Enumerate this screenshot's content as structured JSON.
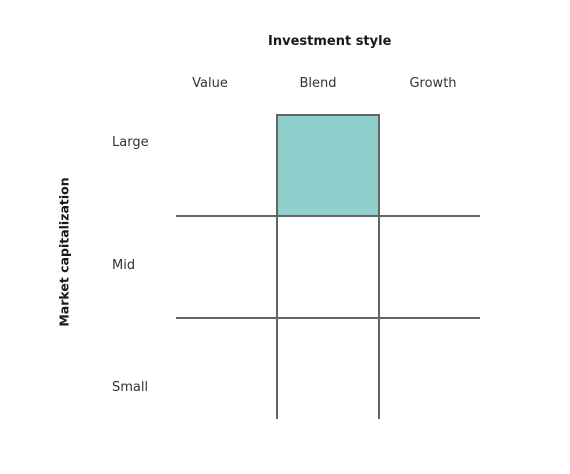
{
  "title": "Investment style",
  "y_axis_label": "Market capitalization",
  "columns": [
    "Value",
    "Blend",
    "Growth"
  ],
  "rows": [
    "Large",
    "Mid",
    "Small"
  ],
  "highlighted_cell": {
    "row": "Large",
    "column": "Blend"
  },
  "colors": {
    "highlight_fill": "#8dd0cc",
    "grid_line": "#666666"
  }
}
